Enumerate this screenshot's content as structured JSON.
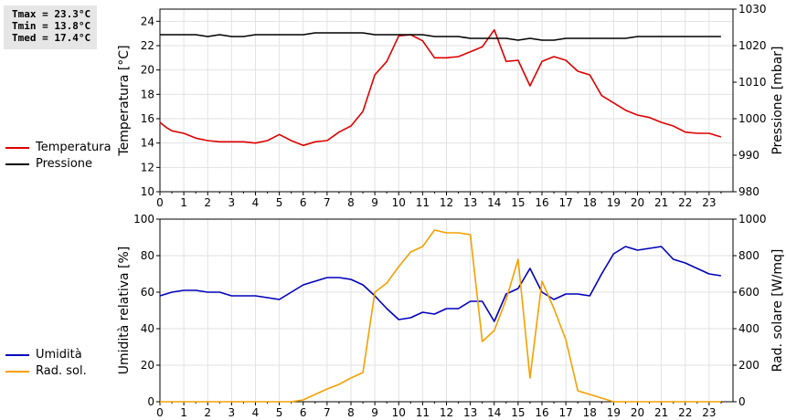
{
  "stats": {
    "tmax": "Tmax = 23.3°C",
    "tmin": "Tmin = 13.8°C",
    "tmed": "Tmed = 17.4°C"
  },
  "legend_top": [
    {
      "label": "Temperatura",
      "color": "#dd0000"
    },
    {
      "label": "Pressione",
      "color": "#000000"
    }
  ],
  "legend_bottom": [
    {
      "label": "Umidità",
      "color": "#0000bb"
    },
    {
      "label": "Rad. sol.",
      "color": "#f5a000"
    }
  ],
  "chart_data": [
    {
      "type": "line",
      "xlabel": "",
      "x_ticks": [
        "0",
        "1",
        "2",
        "3",
        "4",
        "5",
        "6",
        "7",
        "8",
        "9",
        "10",
        "11",
        "12",
        "13",
        "14",
        "15",
        "16",
        "17",
        "18",
        "19",
        "20",
        "21",
        "22",
        "23"
      ],
      "xlim": [
        0,
        24
      ],
      "ylabel": "Temperatura [°C]",
      "ylim": [
        10,
        25
      ],
      "y_ticks": [
        10,
        12,
        14,
        16,
        18,
        20,
        22,
        24
      ],
      "y2label": "Pressione [mbar]",
      "y2lim": [
        980,
        1030
      ],
      "y2_ticks": [
        980,
        990,
        1000,
        1010,
        1020,
        1030
      ],
      "grid": true,
      "legend": "left",
      "series": [
        {
          "name": "Temperatura",
          "axis": "left",
          "color": "#dd0000",
          "points": [
            [
              0,
              15.7
            ],
            [
              0.25,
              15.3
            ],
            [
              0.5,
              15.0
            ],
            [
              1,
              14.8
            ],
            [
              1.5,
              14.4
            ],
            [
              2,
              14.2
            ],
            [
              2.5,
              14.1
            ],
            [
              3,
              14.1
            ],
            [
              3.5,
              14.1
            ],
            [
              4,
              14.0
            ],
            [
              4.5,
              14.2
            ],
            [
              5,
              14.7
            ],
            [
              5.5,
              14.2
            ],
            [
              6,
              13.8
            ],
            [
              6.5,
              14.1
            ],
            [
              7,
              14.2
            ],
            [
              7.5,
              14.9
            ],
            [
              8,
              15.4
            ],
            [
              8.5,
              16.6
            ],
            [
              9,
              19.6
            ],
            [
              9.5,
              20.7
            ],
            [
              10,
              22.8
            ],
            [
              10.5,
              22.9
            ],
            [
              11,
              22.4
            ],
            [
              11.5,
              21.0
            ],
            [
              12,
              21.0
            ],
            [
              12.5,
              21.1
            ],
            [
              13,
              21.5
            ],
            [
              13.5,
              21.9
            ],
            [
              14,
              23.3
            ],
            [
              14.5,
              20.7
            ],
            [
              15,
              20.8
            ],
            [
              15.5,
              18.7
            ],
            [
              16,
              20.7
            ],
            [
              16.5,
              21.1
            ],
            [
              17,
              20.8
            ],
            [
              17.5,
              19.9
            ],
            [
              18,
              19.6
            ],
            [
              18.5,
              17.9
            ],
            [
              19,
              17.3
            ],
            [
              19.5,
              16.7
            ],
            [
              20,
              16.3
            ],
            [
              20.5,
              16.1
            ],
            [
              21,
              15.7
            ],
            [
              21.5,
              15.4
            ],
            [
              22,
              14.9
            ],
            [
              22.5,
              14.8
            ],
            [
              23,
              14.8
            ],
            [
              23.5,
              14.5
            ]
          ]
        },
        {
          "name": "Pressione",
          "axis": "right",
          "color": "#000000",
          "points": [
            [
              0,
              1023
            ],
            [
              0.5,
              1023
            ],
            [
              1,
              1023
            ],
            [
              1.5,
              1023
            ],
            [
              2,
              1022.5
            ],
            [
              2.5,
              1023
            ],
            [
              3,
              1022.5
            ],
            [
              3.5,
              1022.5
            ],
            [
              4,
              1023
            ],
            [
              4.5,
              1023
            ],
            [
              5,
              1023
            ],
            [
              5.5,
              1023
            ],
            [
              6,
              1023
            ],
            [
              6.5,
              1023.5
            ],
            [
              7,
              1023.5
            ],
            [
              7.5,
              1023.5
            ],
            [
              8,
              1023.5
            ],
            [
              8.5,
              1023.5
            ],
            [
              9,
              1023
            ],
            [
              9.5,
              1023
            ],
            [
              10,
              1023
            ],
            [
              10.5,
              1023
            ],
            [
              11,
              1023
            ],
            [
              11.5,
              1022.5
            ],
            [
              12,
              1022.5
            ],
            [
              12.5,
              1022.5
            ],
            [
              13,
              1022
            ],
            [
              13.5,
              1022
            ],
            [
              14,
              1022
            ],
            [
              14.5,
              1022
            ],
            [
              15,
              1021.5
            ],
            [
              15.5,
              1022
            ],
            [
              16,
              1021.5
            ],
            [
              16.5,
              1021.5
            ],
            [
              17,
              1022
            ],
            [
              17.5,
              1022
            ],
            [
              18,
              1022
            ],
            [
              18.5,
              1022
            ],
            [
              19,
              1022
            ],
            [
              19.5,
              1022
            ],
            [
              20,
              1022.5
            ],
            [
              20.5,
              1022.5
            ],
            [
              21,
              1022.5
            ],
            [
              21.5,
              1022.5
            ],
            [
              22,
              1022.5
            ],
            [
              22.5,
              1022.5
            ],
            [
              23,
              1022.5
            ],
            [
              23.5,
              1022.5
            ]
          ]
        }
      ]
    },
    {
      "type": "line",
      "xlabel": "",
      "x_ticks": [
        "0",
        "1",
        "2",
        "3",
        "4",
        "5",
        "6",
        "7",
        "8",
        "9",
        "10",
        "11",
        "12",
        "13",
        "14",
        "15",
        "16",
        "17",
        "18",
        "19",
        "20",
        "21",
        "22",
        "23"
      ],
      "xlim": [
        0,
        24
      ],
      "ylabel": "Umidità relativa [%]",
      "ylim": [
        0,
        100
      ],
      "y_ticks": [
        0,
        20,
        40,
        60,
        80,
        100
      ],
      "y2label": "Rad. solare [W/mq]",
      "y2lim": [
        0,
        1000
      ],
      "y2_ticks": [
        0,
        200,
        400,
        600,
        800,
        1000
      ],
      "grid": true,
      "legend": "left",
      "series": [
        {
          "name": "Umidità",
          "axis": "left",
          "color": "#0000bb",
          "points": [
            [
              0,
              58
            ],
            [
              0.5,
              60
            ],
            [
              1,
              61
            ],
            [
              1.5,
              61
            ],
            [
              2,
              60
            ],
            [
              2.5,
              60
            ],
            [
              3,
              58
            ],
            [
              3.5,
              58
            ],
            [
              4,
              58
            ],
            [
              4.5,
              57
            ],
            [
              5,
              56
            ],
            [
              5.5,
              60
            ],
            [
              6,
              64
            ],
            [
              6.5,
              66
            ],
            [
              7,
              68
            ],
            [
              7.5,
              68
            ],
            [
              8,
              67
            ],
            [
              8.5,
              64
            ],
            [
              9,
              58
            ],
            [
              9.5,
              51
            ],
            [
              10,
              45
            ],
            [
              10.5,
              46
            ],
            [
              11,
              49
            ],
            [
              11.5,
              48
            ],
            [
              12,
              51
            ],
            [
              12.5,
              51
            ],
            [
              13,
              55
            ],
            [
              13.5,
              55
            ],
            [
              14,
              44
            ],
            [
              14.5,
              59
            ],
            [
              15,
              62
            ],
            [
              15.5,
              73
            ],
            [
              16,
              60
            ],
            [
              16.5,
              56
            ],
            [
              17,
              59
            ],
            [
              17.5,
              59
            ],
            [
              18,
              58
            ],
            [
              18.5,
              70
            ],
            [
              19,
              81
            ],
            [
              19.5,
              85
            ],
            [
              20,
              83
            ],
            [
              20.5,
              84
            ],
            [
              21,
              85
            ],
            [
              21.5,
              78
            ],
            [
              22,
              76
            ],
            [
              22.5,
              73
            ],
            [
              23,
              70
            ],
            [
              23.5,
              69
            ]
          ]
        },
        {
          "name": "Rad. sol.",
          "axis": "right",
          "color": "#f5a000",
          "points": [
            [
              0,
              0
            ],
            [
              1,
              0
            ],
            [
              2,
              0
            ],
            [
              3,
              0
            ],
            [
              4,
              0
            ],
            [
              5,
              0
            ],
            [
              5.5,
              0
            ],
            [
              6,
              10
            ],
            [
              6.5,
              40
            ],
            [
              7,
              70
            ],
            [
              7.5,
              95
            ],
            [
              8,
              130
            ],
            [
              8.5,
              160
            ],
            [
              9,
              600
            ],
            [
              9.5,
              650
            ],
            [
              10,
              740
            ],
            [
              10.5,
              820
            ],
            [
              11,
              850
            ],
            [
              11.5,
              940
            ],
            [
              12,
              925
            ],
            [
              12.5,
              925
            ],
            [
              13,
              915
            ],
            [
              13.5,
              330
            ],
            [
              14,
              390
            ],
            [
              14.5,
              560
            ],
            [
              15,
              780
            ],
            [
              15.5,
              130
            ],
            [
              16,
              660
            ],
            [
              16.5,
              510
            ],
            [
              17,
              340
            ],
            [
              17.5,
              60
            ],
            [
              18,
              40
            ],
            [
              18.5,
              20
            ],
            [
              19,
              0
            ],
            [
              20,
              0
            ],
            [
              21,
              0
            ],
            [
              22,
              0
            ],
            [
              23,
              0
            ],
            [
              23.5,
              0
            ]
          ]
        }
      ]
    }
  ]
}
